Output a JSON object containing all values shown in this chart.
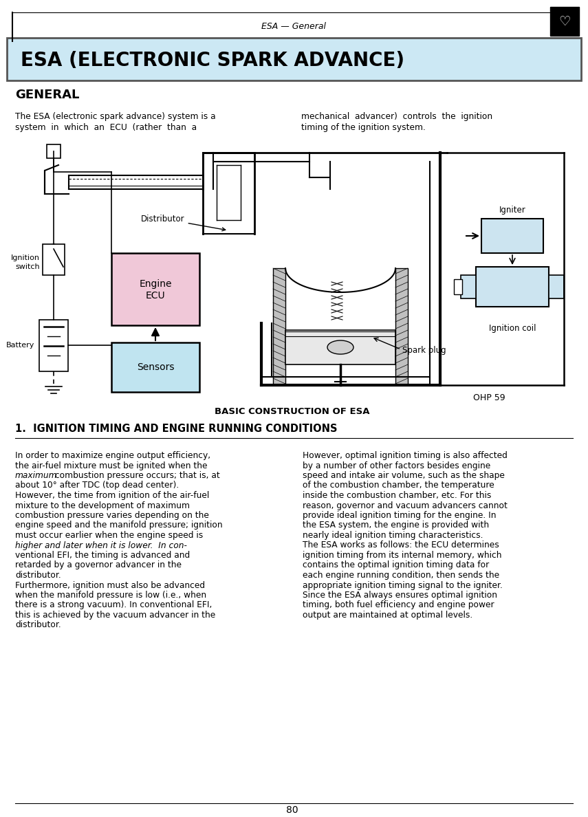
{
  "page_title": "ESA — General",
  "main_title": "ESA (ELECTRONIC SPARK ADVANCE)",
  "section_title": "GENERAL",
  "section_number": "1.  IGNITION TIMING AND ENGINE RUNNING CONDITIONS",
  "diagram_caption": "BASIC CONSTRUCTION OF ESA",
  "diagram_ref": "OHP 59",
  "page_number": "80",
  "bg_header_color": "#cce8f4",
  "bg_color": "#ffffff",
  "ecu_box_color": "#f0c8d8",
  "sensors_box_color": "#c0e4f0",
  "igniter_box_color": "#cce4f0",
  "ignition_coil_box_color": "#cce4f0",
  "left_column_text": [
    [
      "In order to maximize engine output efficiency,",
      "normal"
    ],
    [
      "the air-fuel mixture must be ignited when the",
      "normal"
    ],
    [
      "maximum combustion pressure occurs; that is, at",
      "italic_max"
    ],
    [
      "about 10° after TDC (top dead center).",
      "normal"
    ],
    [
      "However, the time from ignition of the air-fuel",
      "normal"
    ],
    [
      "mixture to the development of maximum",
      "normal"
    ],
    [
      "combustion pressure varies depending on the",
      "normal"
    ],
    [
      "engine speed and the manifold pressure; ignition",
      "normal"
    ],
    [
      "must occur earlier when the engine speed is",
      "italic_earlier"
    ],
    [
      "higher and later when it is lower.  In con-",
      "italic_hll"
    ],
    [
      "ventional EFI, the timing is advanced and",
      "normal"
    ],
    [
      "retarded by a governor advancer in the",
      "normal"
    ],
    [
      "distributor.",
      "normal"
    ],
    [
      "Furthermore, ignition must also be advanced",
      "normal"
    ],
    [
      "when the manifold pressure is low (i.e., when",
      "normal"
    ],
    [
      "there is a strong vacuum). In conventional EFI,",
      "normal"
    ],
    [
      "this is achieved by the vacuum advancer in the",
      "normal"
    ],
    [
      "distributor.",
      "normal"
    ]
  ],
  "right_column_text": [
    "However, optimal ignition timing is also affected",
    "by a number of other factors besides engine",
    "speed and intake air volume, such as the shape",
    "of the combustion chamber, the temperature",
    "inside the combustion chamber, etc. For this",
    "reason, governor and vacuum advancers cannot",
    "provide ideal ignition timing for the engine. In",
    "the ESA system, the engine is provided with",
    "nearly ideal ignition timing characteristics.",
    "The ESA works as follows: the ECU determines",
    "ignition timing from its internal memory, which",
    "contains the optimal ignition timing data for",
    "each engine running condition, then sends the",
    "appropriate ignition timing signal to the igniter.",
    "Since the ESA always ensures optimal ignition",
    "timing, both fuel efficiency and engine power",
    "output are maintained at optimal levels."
  ]
}
